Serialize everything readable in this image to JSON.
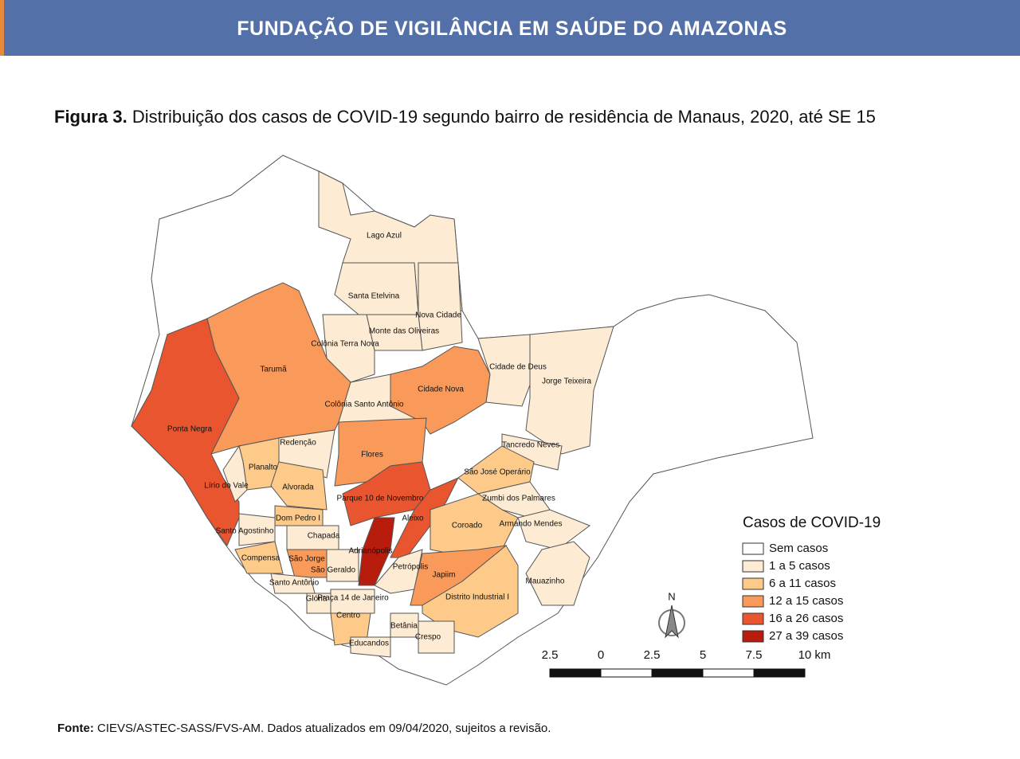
{
  "header": {
    "title": "FUNDAÇÃO DE VIGILÂNCIA EM SAÚDE DO AMAZONAS"
  },
  "figure": {
    "label": "Figura 3.",
    "text": "Distribuição dos casos de COVID-19 segundo bairro de residência de Manaus, 2020, até SE 15"
  },
  "map": {
    "neighborhoods": [
      {
        "name": "Lago Azul",
        "color": "#fdebd3"
      },
      {
        "name": "Santa Etelvina",
        "color": "#fdebd3"
      },
      {
        "name": "Nova Cidade",
        "color": "#fdebd3"
      },
      {
        "name": "Monte das Oliveiras",
        "color": "#fdebd3"
      },
      {
        "name": "Colônia Terra Nova",
        "color": "#fdebd3"
      },
      {
        "name": "Tarumã",
        "color": "#f99a5a"
      },
      {
        "name": "Ponta Negra",
        "color": "#e8552e"
      },
      {
        "name": "Cidade Nova",
        "color": "#f99a5a"
      },
      {
        "name": "Colônia Santo Antônio",
        "color": "#fdebd3"
      },
      {
        "name": "Cidade de Deus",
        "color": "#fdebd3"
      },
      {
        "name": "Jorge Teixeira",
        "color": "#fdebd3"
      },
      {
        "name": "Flores",
        "color": "#f99a5a"
      },
      {
        "name": "Redenção",
        "color": "#fdebd3"
      },
      {
        "name": "Tancredo Neves",
        "color": "#fdebd3"
      },
      {
        "name": "Planalto",
        "color": "#fdca8a"
      },
      {
        "name": "São José Operário",
        "color": "#fdca8a"
      },
      {
        "name": "Lírio do Vale",
        "color": "#fdebd3"
      },
      {
        "name": "Alvorada",
        "color": "#fdca8a"
      },
      {
        "name": "Parque 10 de Novembro",
        "color": "#e8552e"
      },
      {
        "name": "Zumbi dos Palmares",
        "color": "#fdebd3"
      },
      {
        "name": "Dom Pedro I",
        "color": "#fdca8a"
      },
      {
        "name": "Aleixo",
        "color": "#e8552e"
      },
      {
        "name": "Coroado",
        "color": "#fdca8a"
      },
      {
        "name": "Armando Mendes",
        "color": "#fdebd3"
      },
      {
        "name": "Chapada",
        "color": "#fdebd3"
      },
      {
        "name": "Santo Agostinho",
        "color": "#fdebd3"
      },
      {
        "name": "Adrianópolis",
        "color": "#b81c0c"
      },
      {
        "name": "Compensa",
        "color": "#fdca8a"
      },
      {
        "name": "São Jorge",
        "color": "#f99a5a"
      },
      {
        "name": "São Geraldo",
        "color": "#fdebd3"
      },
      {
        "name": "Petrópolis",
        "color": "#fdebd3"
      },
      {
        "name": "Japiim",
        "color": "#f99a5a"
      },
      {
        "name": "Mauazinho",
        "color": "#fdebd3"
      },
      {
        "name": "Santo Antônio",
        "color": "#fdebd3"
      },
      {
        "name": "Glória",
        "color": "#fdebd3"
      },
      {
        "name": "Praça 14 de Janeiro",
        "color": "#fdebd3"
      },
      {
        "name": "Distrito Industrial I",
        "color": "#fdca8a"
      },
      {
        "name": "Centro",
        "color": "#fdca8a"
      },
      {
        "name": "Betânia",
        "color": "#fdebd3"
      },
      {
        "name": "Educandos",
        "color": "#fdebd3"
      },
      {
        "name": "Crespo",
        "color": "#fdebd3"
      }
    ],
    "legend": {
      "title": "Casos de COVID-19",
      "items": [
        {
          "label": "Sem casos",
          "color": "#ffffff"
        },
        {
          "label": "1 a 5 casos",
          "color": "#fdebd3"
        },
        {
          "label": "6 a 11 casos",
          "color": "#fdca8a"
        },
        {
          "label": "12 a 15 casos",
          "color": "#f99a5a"
        },
        {
          "label": "16 a 26 casos",
          "color": "#e8552e"
        },
        {
          "label": "27 a 39 casos",
          "color": "#b81c0c"
        }
      ]
    },
    "north": "N",
    "scale_labels": [
      "2.5",
      "0",
      "2.5",
      "5",
      "7.5",
      "10 km"
    ]
  },
  "footer": {
    "label": "Fonte:",
    "text": "CIEVS/ASTEC-SASS/FVS-AM. Dados atualizados em 09/04/2020, sujeitos a revisão."
  }
}
